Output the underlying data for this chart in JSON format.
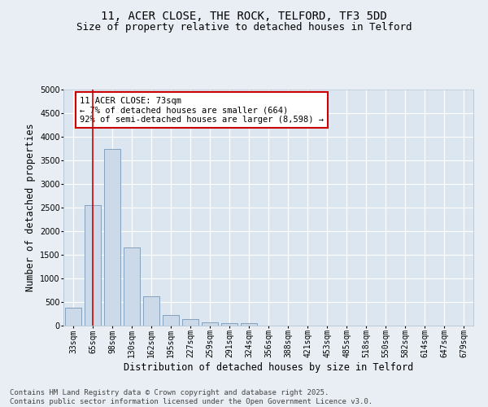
{
  "title_line1": "11, ACER CLOSE, THE ROCK, TELFORD, TF3 5DD",
  "title_line2": "Size of property relative to detached houses in Telford",
  "xlabel": "Distribution of detached houses by size in Telford",
  "ylabel": "Number of detached properties",
  "categories": [
    "33sqm",
    "65sqm",
    "98sqm",
    "130sqm",
    "162sqm",
    "195sqm",
    "227sqm",
    "259sqm",
    "291sqm",
    "324sqm",
    "356sqm",
    "388sqm",
    "421sqm",
    "453sqm",
    "485sqm",
    "518sqm",
    "550sqm",
    "582sqm",
    "614sqm",
    "647sqm",
    "679sqm"
  ],
  "values": [
    380,
    2550,
    3750,
    1650,
    620,
    220,
    130,
    75,
    55,
    50,
    8,
    4,
    2,
    1,
    1,
    0,
    0,
    0,
    0,
    0,
    0
  ],
  "bar_color": "#ccd9e8",
  "bar_edge_color": "#6688aa",
  "vline_x": 1,
  "vline_color": "#cc0000",
  "annotation_text": "11 ACER CLOSE: 73sqm\n← 7% of detached houses are smaller (664)\n92% of semi-detached houses are larger (8,598) →",
  "annotation_box_edge": "#cc0000",
  "ylim": [
    0,
    5000
  ],
  "yticks": [
    0,
    500,
    1000,
    1500,
    2000,
    2500,
    3000,
    3500,
    4000,
    4500,
    5000
  ],
  "background_color": "#e8eef4",
  "plot_bg_color": "#dce6f0",
  "grid_color": "#ffffff",
  "footer": "Contains HM Land Registry data © Crown copyright and database right 2025.\nContains public sector information licensed under the Open Government Licence v3.0.",
  "title_fontsize": 10,
  "subtitle_fontsize": 9,
  "axis_label_fontsize": 8.5,
  "tick_fontsize": 7,
  "annotation_fontsize": 7.5,
  "footer_fontsize": 6.5
}
